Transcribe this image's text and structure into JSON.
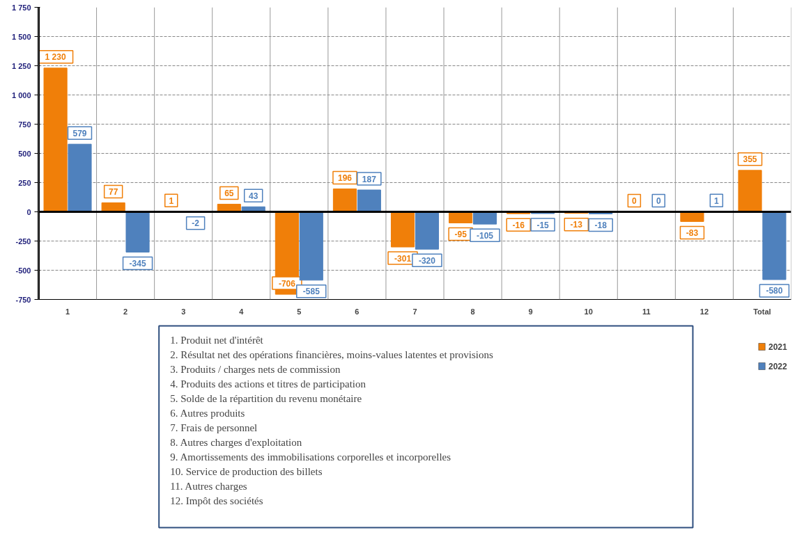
{
  "chart_data": {
    "type": "bar",
    "categories": [
      "1",
      "2",
      "3",
      "4",
      "5",
      "6",
      "7",
      "8",
      "9",
      "10",
      "11",
      "12",
      "Total"
    ],
    "series": [
      {
        "name": "2021",
        "color": "#f07f09",
        "values": [
          1230,
          77,
          1,
          65,
          -706,
          196,
          -301,
          -95,
          -16,
          -13,
          0,
          -83,
          355
        ],
        "value_labels": [
          "1 230",
          "77",
          "1",
          "65",
          "-706",
          "196",
          "-301",
          "-95",
          "-16",
          "-13",
          "0",
          "-83",
          "355"
        ]
      },
      {
        "name": "2022",
        "color": "#4f81bd",
        "values": [
          579,
          -345,
          -2,
          43,
          -585,
          187,
          -320,
          -105,
          -15,
          -18,
          0,
          1,
          -580
        ],
        "value_labels": [
          "579",
          "-345",
          "-2",
          "43",
          "-585",
          "187",
          "-320",
          "-105",
          "-15",
          "-18",
          "0",
          "1",
          "-580"
        ]
      }
    ],
    "ylim": [
      -750,
      1750
    ],
    "yticks": [
      {
        "value": -750,
        "label": "-750"
      },
      {
        "value": -500,
        "label": "-500"
      },
      {
        "value": -250,
        "label": "-250"
      },
      0,
      {
        "value": 250,
        "label": "250"
      },
      {
        "value": 500,
        "label": "500"
      },
      {
        "value": 750,
        "label": "750"
      },
      {
        "value": 1000,
        "label": "1 000"
      },
      {
        "value": 1250,
        "label": "1 250"
      },
      {
        "value": 1500,
        "label": "1 500"
      },
      {
        "value": 1750,
        "label": "1 750"
      }
    ],
    "grid": true,
    "legend": "right",
    "annotations": [
      "1. Produit net d'intérêt",
      "2. Résultat net des opérations financières, moins-values latentes et provisions",
      "3. Produits / charges nets de commission",
      "4. Produits des actions et titres de participation",
      "5. Solde de la répartition du revenu monétaire",
      "6. Autres produits",
      "7. Frais de personnel",
      "8. Autres charges d'exploitation",
      "9. Amortissements des immobilisations corporelles et incorporelles",
      "10. Service de production des billets",
      "11. Autres charges",
      "12. Impôt des sociétés"
    ]
  }
}
